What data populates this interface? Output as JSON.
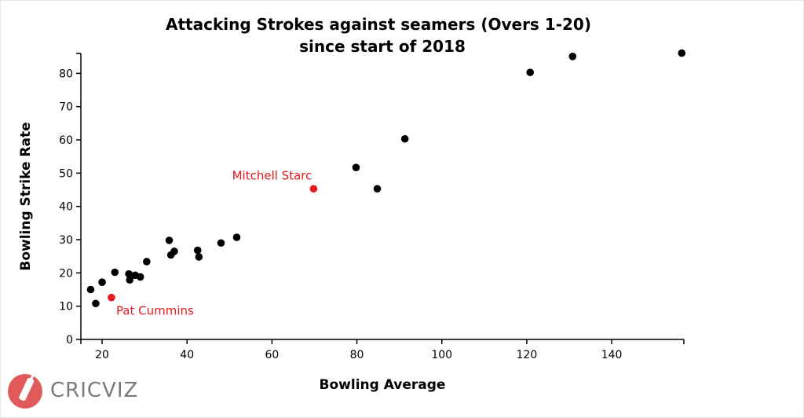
{
  "chart_data": {
    "type": "scatter",
    "title": [
      "Attacking Strokes against seamers (Overs 1-20)",
      "since start of 2018"
    ],
    "xlabel": "Bowling Average",
    "ylabel": "Bowling Strike Rate",
    "xlim": [
      15,
      157
    ],
    "ylim": [
      0,
      86
    ],
    "xticks": [
      20,
      40,
      60,
      80,
      100,
      120,
      140
    ],
    "yticks": [
      0,
      10,
      20,
      30,
      40,
      50,
      60,
      70,
      80
    ],
    "grid": false,
    "point_color": "#000000",
    "highlight_color": "#e41a1c",
    "points": [
      {
        "x": 17.3,
        "y": 15.0
      },
      {
        "x": 18.5,
        "y": 10.8
      },
      {
        "x": 20.0,
        "y": 17.2
      },
      {
        "x": 23.0,
        "y": 20.2
      },
      {
        "x": 26.3,
        "y": 19.7
      },
      {
        "x": 26.5,
        "y": 17.9
      },
      {
        "x": 27.8,
        "y": 19.3
      },
      {
        "x": 29.0,
        "y": 18.8
      },
      {
        "x": 30.5,
        "y": 23.4
      },
      {
        "x": 35.8,
        "y": 29.8
      },
      {
        "x": 36.2,
        "y": 25.4
      },
      {
        "x": 37.0,
        "y": 26.5
      },
      {
        "x": 42.5,
        "y": 26.8
      },
      {
        "x": 42.8,
        "y": 24.8
      },
      {
        "x": 48.0,
        "y": 29.0
      },
      {
        "x": 51.7,
        "y": 30.7
      },
      {
        "x": 79.8,
        "y": 51.7
      },
      {
        "x": 84.8,
        "y": 45.3
      },
      {
        "x": 91.3,
        "y": 60.3
      },
      {
        "x": 120.8,
        "y": 80.3
      },
      {
        "x": 130.8,
        "y": 85.1
      },
      {
        "x": 156.5,
        "y": 86.1
      }
    ],
    "highlighted": [
      {
        "label": "Mitchell Starc",
        "x": 69.8,
        "y": 45.3,
        "label_pos": "above-left"
      },
      {
        "label": "Pat Cummins",
        "x": 22.2,
        "y": 12.6,
        "label_pos": "below-right"
      }
    ]
  },
  "logo": {
    "text": "CRICVIZ",
    "color": "#e05a5a",
    "text_color": "#7a7a7a"
  }
}
